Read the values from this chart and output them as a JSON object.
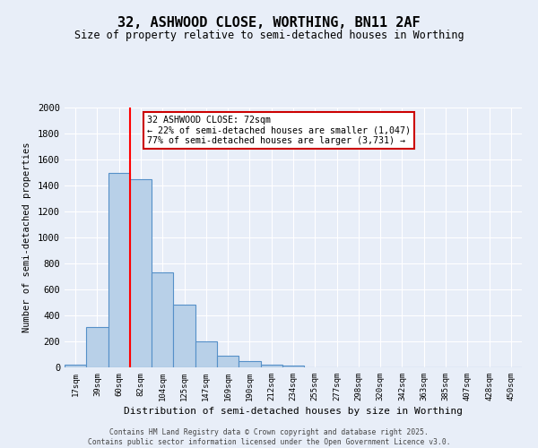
{
  "title1": "32, ASHWOOD CLOSE, WORTHING, BN11 2AF",
  "title2": "Size of property relative to semi-detached houses in Worthing",
  "xlabel": "Distribution of semi-detached houses by size in Worthing",
  "ylabel": "Number of semi-detached properties",
  "categories": [
    "17sqm",
    "39sqm",
    "60sqm",
    "82sqm",
    "104sqm",
    "125sqm",
    "147sqm",
    "169sqm",
    "190sqm",
    "212sqm",
    "234sqm",
    "255sqm",
    "277sqm",
    "298sqm",
    "320sqm",
    "342sqm",
    "363sqm",
    "385sqm",
    "407sqm",
    "428sqm",
    "450sqm"
  ],
  "values": [
    20,
    310,
    1500,
    1450,
    730,
    480,
    200,
    90,
    50,
    20,
    15,
    0,
    0,
    0,
    0,
    0,
    0,
    0,
    0,
    0,
    0
  ],
  "bar_color": "#b8d0e8",
  "bar_edge_color": "#5590c8",
  "property_size": "72sqm",
  "pct_smaller": "22%",
  "n_smaller": "1,047",
  "pct_larger": "77%",
  "n_larger": "3,731",
  "annotation_box_color": "#ffffff",
  "annotation_box_edge": "#cc0000",
  "ylim": [
    0,
    2000
  ],
  "yticks": [
    0,
    200,
    400,
    600,
    800,
    1000,
    1200,
    1400,
    1600,
    1800,
    2000
  ],
  "footer1": "Contains HM Land Registry data © Crown copyright and database right 2025.",
  "footer2": "Contains public sector information licensed under the Open Government Licence v3.0.",
  "bg_color": "#e8eef8",
  "grid_color": "#ffffff"
}
